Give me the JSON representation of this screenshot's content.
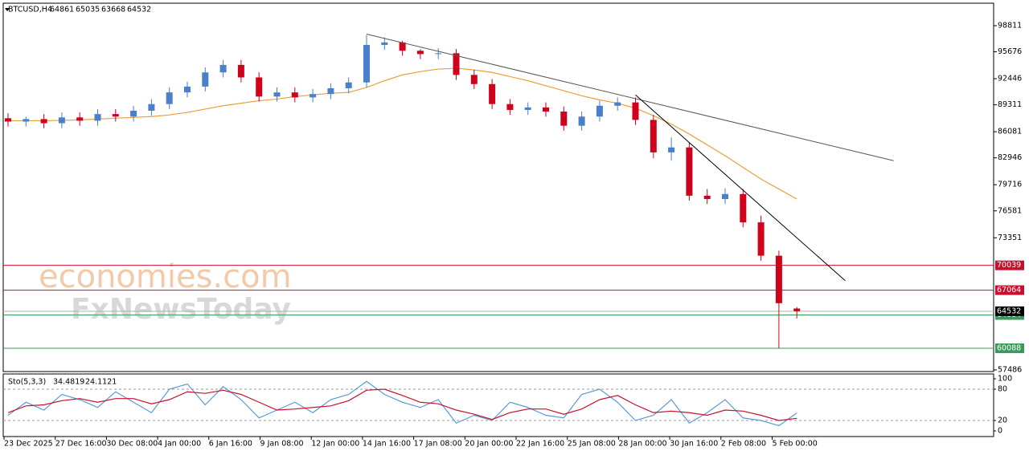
{
  "header": {
    "symbol": "BTCUSD,H4",
    "ohlc": [
      64861,
      65035,
      63668,
      64532
    ]
  },
  "watermark": [
    "economies.com",
    "FxNewsToday"
  ],
  "chart_data": {
    "type": "candlestick",
    "ylim": [
      57293,
      101507
    ],
    "yticks": [
      98811,
      95676,
      92446,
      89311,
      86081,
      82946,
      79716,
      76581,
      73351,
      57486
    ],
    "categories": [
      "23 Dec 2025",
      "27 Dec 16:00",
      "30 Dec 08:00",
      "4 Jan 00:00",
      "6 Jan 16:00",
      "9 Jan 08:00",
      "12 Jan 00:00",
      "14 Jan 16:00",
      "17 Jan 08:00",
      "20 Jan 00:00",
      "22 Jan 16:00",
      "25 Jan 08:00",
      "28 Jan 00:00",
      "30 Jan 16:00",
      "2 Feb 08:00",
      "5 Feb 00:00"
    ],
    "up_color": "#4a7fc9",
    "down_color": "#d0021b",
    "open": [
      87700,
      87300,
      87600,
      87100,
      87800,
      87400,
      88200,
      87900,
      88600,
      89400,
      90800,
      91500,
      93200,
      94100,
      92600,
      90300,
      90800,
      90200,
      90600,
      91300,
      92000,
      96500,
      96800,
      95800,
      95400,
      95500,
      92900,
      91800,
      89400,
      88700,
      89000,
      88500,
      86800,
      87900,
      89200,
      89600,
      87500,
      83600,
      84200,
      78400,
      78000,
      78600,
      75200,
      71200,
      64861
    ],
    "high": [
      88300,
      87900,
      88200,
      88400,
      88400,
      88800,
      88800,
      89200,
      90000,
      91400,
      92100,
      93800,
      94700,
      94700,
      93200,
      91400,
      91400,
      91200,
      91900,
      92600,
      97700,
      97400,
      97000,
      96000,
      96100,
      96000,
      93500,
      92400,
      90000,
      89600,
      89600,
      89100,
      88500,
      89800,
      90200,
      90200,
      88100,
      85400,
      84800,
      79200,
      79300,
      79200,
      76000,
      71800,
      65035
    ],
    "low": [
      86700,
      86700,
      86500,
      86500,
      86800,
      86800,
      87300,
      87300,
      88000,
      88800,
      90200,
      90900,
      92600,
      92000,
      89700,
      89700,
      89600,
      89600,
      90000,
      90700,
      91400,
      95900,
      95200,
      94800,
      94800,
      92300,
      91200,
      88800,
      88100,
      88100,
      87900,
      86200,
      86200,
      87300,
      88600,
      86900,
      82900,
      82600,
      77800,
      77400,
      77400,
      74600,
      70600,
      60100,
      63668
    ],
    "close": [
      87300,
      87600,
      87100,
      87800,
      87400,
      88200,
      87900,
      88600,
      89400,
      90800,
      91500,
      93200,
      94100,
      92600,
      90300,
      90800,
      90200,
      90600,
      91300,
      92000,
      96500,
      96800,
      95800,
      95400,
      95500,
      92900,
      91800,
      89400,
      88700,
      89000,
      88500,
      86800,
      87900,
      89200,
      89600,
      87500,
      83600,
      84200,
      78400,
      78000,
      78600,
      75200,
      71200,
      65500,
      64532
    ],
    "ma": {
      "color": "#e8a13a",
      "values": [
        87400,
        87400,
        87400,
        87450,
        87500,
        87600,
        87700,
        87800,
        87900,
        88100,
        88400,
        88800,
        89200,
        89500,
        89800,
        90000,
        90300,
        90500,
        90700,
        90800,
        91400,
        92200,
        92900,
        93300,
        93600,
        93700,
        93500,
        93200,
        92700,
        92200,
        91600,
        91000,
        90400,
        89900,
        89500,
        88900,
        88000,
        87000,
        85800,
        84500,
        83200,
        81800,
        80400,
        79200,
        78000
      ]
    },
    "trendlines": [
      {
        "x": [
          20,
          49.4
        ],
        "y": [
          97800,
          82600
        ],
        "color": "#555555"
      },
      {
        "x": [
          35,
          46.7
        ],
        "y": [
          90500,
          68200
        ],
        "color": "#000000"
      }
    ],
    "levels": [
      {
        "value": 70039,
        "color": "#c8102e"
      },
      {
        "value": 67064,
        "color": "#c8102e"
      },
      {
        "value": 64084,
        "color": "#3a9a5b"
      },
      {
        "value": 60088,
        "color": "#3a9a5b"
      }
    ],
    "current": {
      "value": 64532,
      "color": "#000000"
    },
    "stochastic": {
      "label": "Sto(5,3,3)",
      "readings": [
        34.4819,
        24.1121
      ],
      "ylim": [
        0,
        100
      ],
      "yticks": [
        100,
        80,
        20,
        0
      ],
      "main": {
        "color": "#5b9bd5",
        "values": [
          30,
          55,
          40,
          70,
          60,
          45,
          75,
          55,
          35,
          80,
          90,
          50,
          85,
          60,
          25,
          40,
          55,
          35,
          60,
          70,
          95,
          70,
          55,
          45,
          60,
          15,
          30,
          20,
          55,
          45,
          30,
          25,
          70,
          80,
          55,
          20,
          30,
          60,
          15,
          35,
          60,
          25,
          20,
          10,
          34.48
        ]
      },
      "signal": {
        "color": "#c8102e",
        "values": [
          35,
          48,
          50,
          58,
          62,
          55,
          62,
          62,
          52,
          60,
          75,
          72,
          78,
          70,
          55,
          40,
          42,
          45,
          48,
          58,
          78,
          80,
          68,
          55,
          52,
          40,
          32,
          22,
          35,
          42,
          42,
          32,
          42,
          60,
          68,
          50,
          35,
          38,
          35,
          30,
          40,
          38,
          30,
          20,
          24.11
        ]
      }
    }
  }
}
